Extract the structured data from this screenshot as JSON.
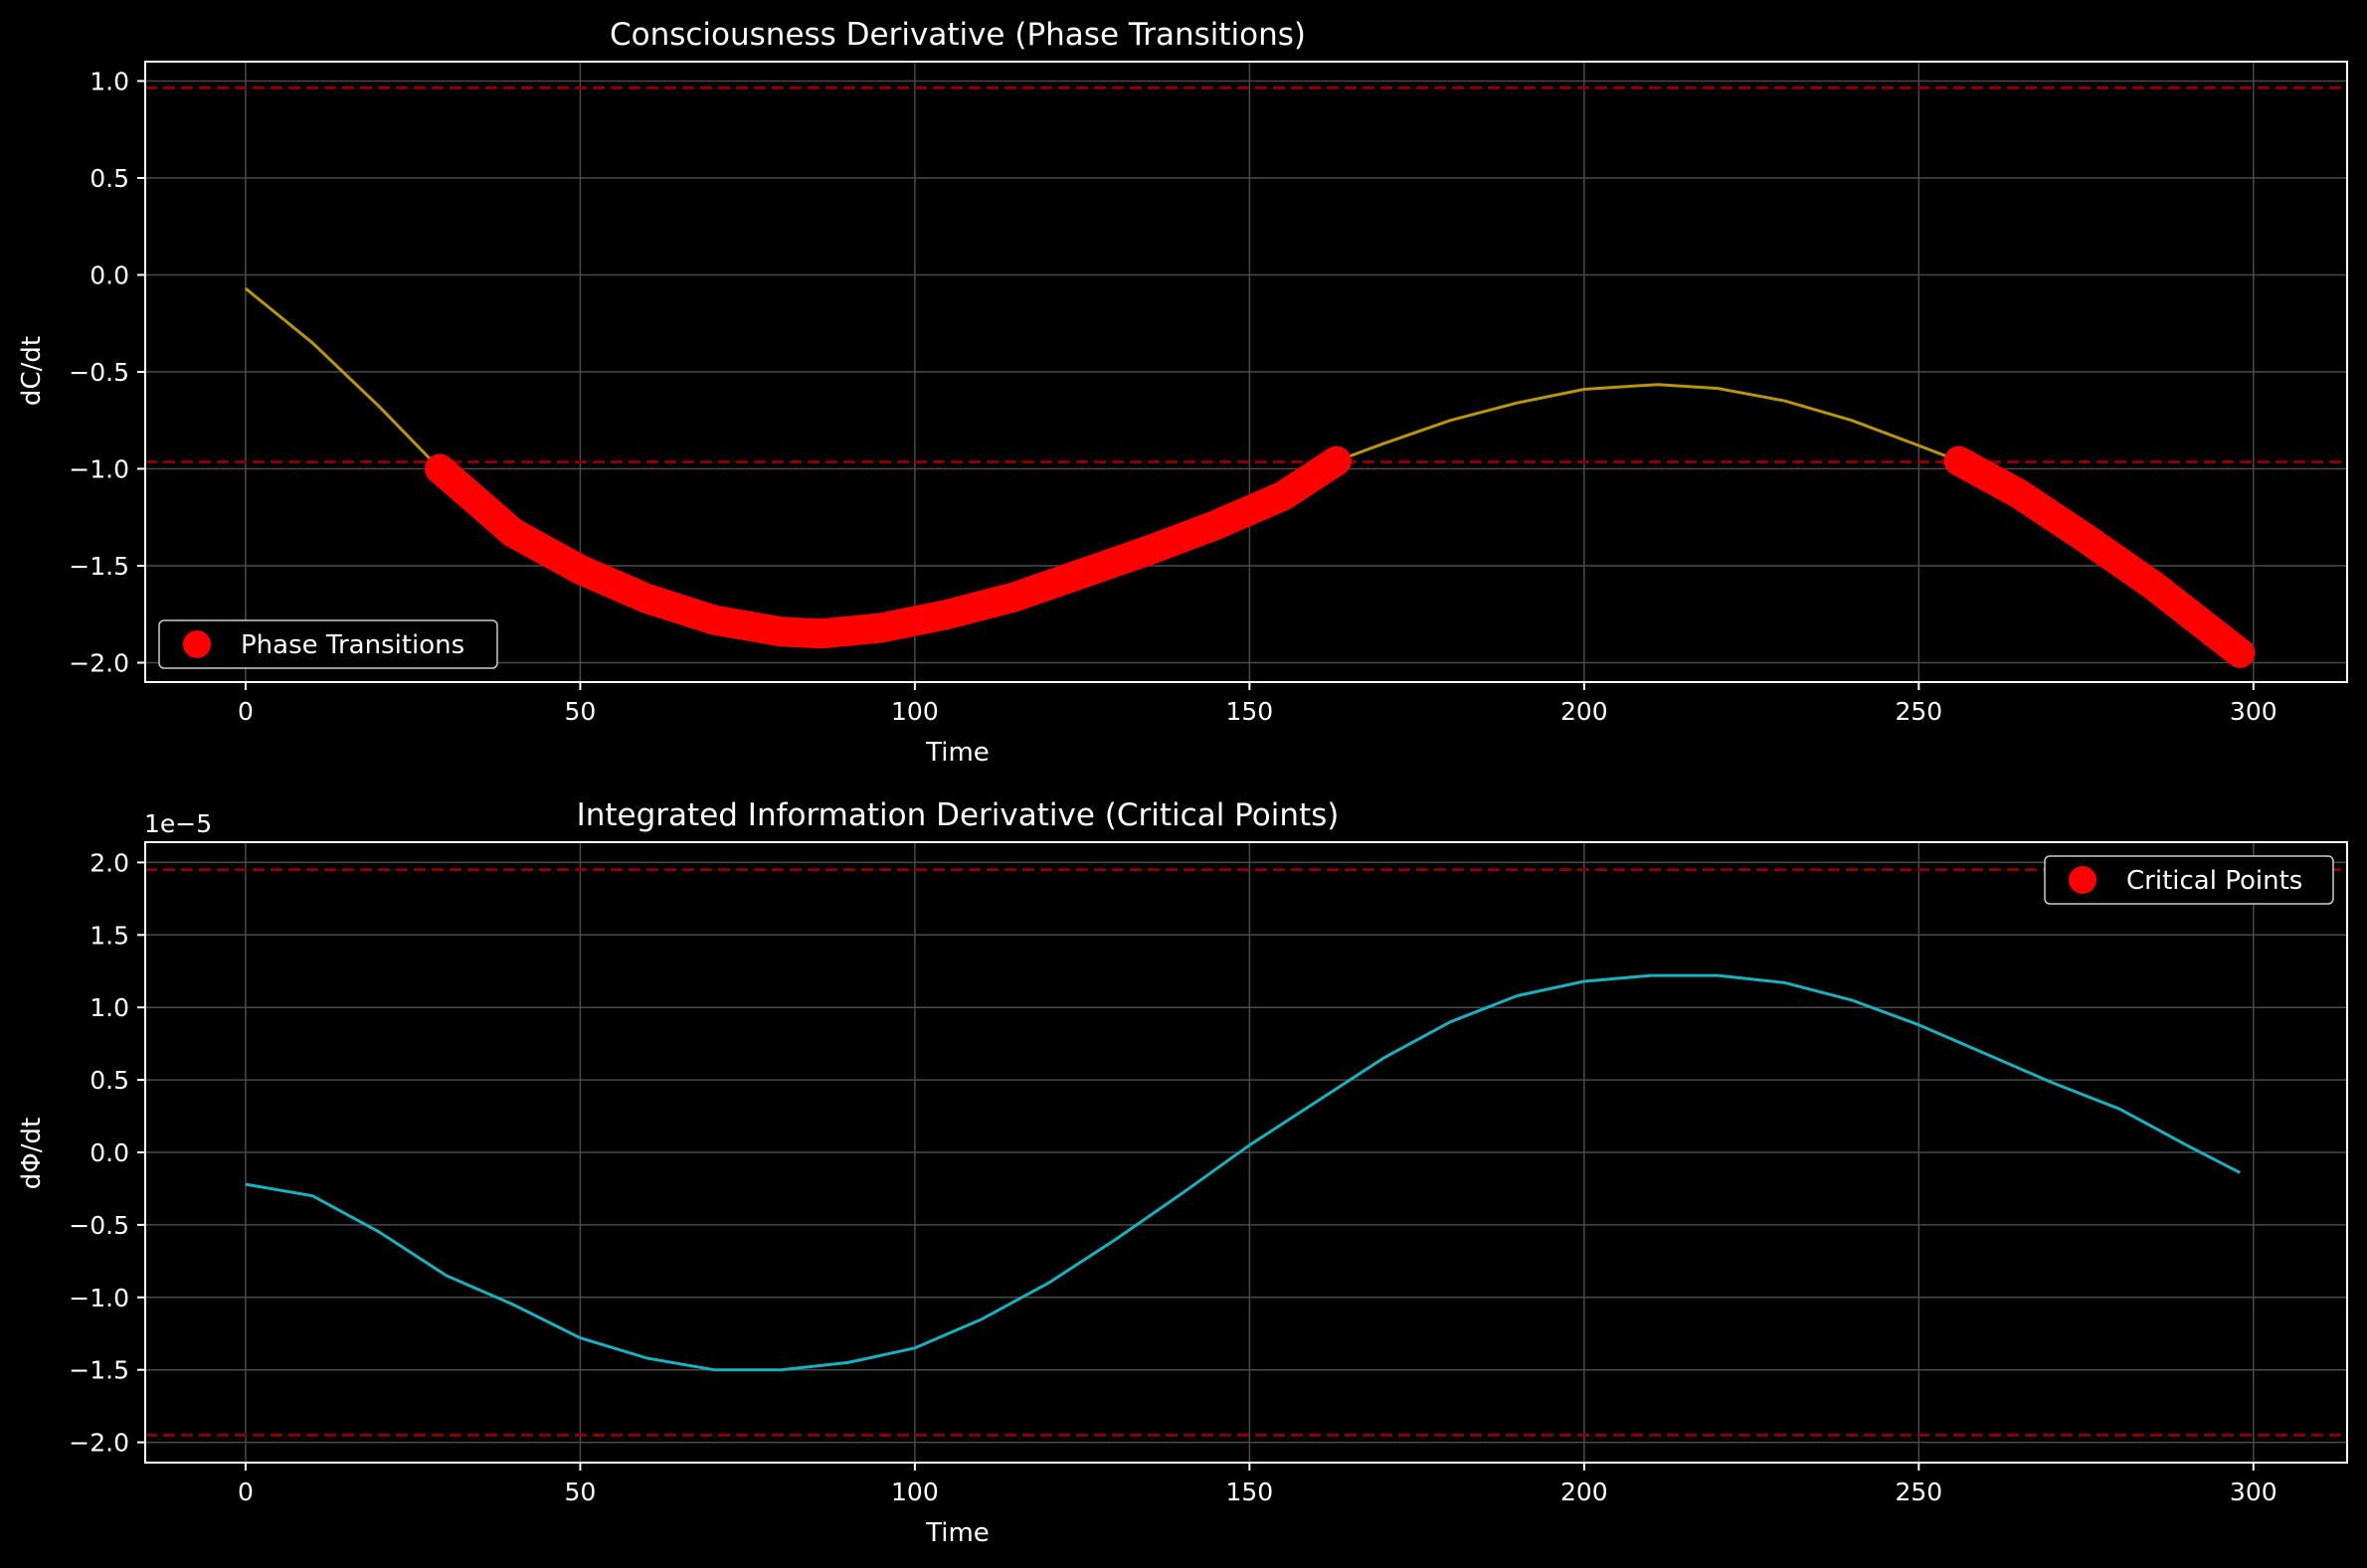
{
  "chart_data": [
    {
      "type": "line",
      "title": "Consciousness Derivative (Phase Transitions)",
      "xlabel": "Time",
      "ylabel": "dC/dt",
      "xlim": [
        -15,
        314
      ],
      "ylim": [
        -2.1,
        1.1
      ],
      "xticks": [
        0,
        50,
        100,
        150,
        200,
        250,
        300
      ],
      "xtick_labels": [
        "0",
        "50",
        "100",
        "150",
        "200",
        "250",
        "300"
      ],
      "yticks": [
        1.0,
        0.5,
        0.0,
        -0.5,
        -1.0,
        -1.5,
        -2.0
      ],
      "ytick_labels": [
        "1.0",
        "0.5",
        "0.0",
        "−0.5",
        "−1.0",
        "−1.5",
        "−2.0"
      ],
      "grid": true,
      "thresholds": [
        0.965,
        -0.965
      ],
      "threshold_color": "#8b0000",
      "legend": {
        "label": "Phase Transitions",
        "placement": "lower-left"
      },
      "series": [
        {
          "color": "#b8960b",
          "x": [
            0,
            10,
            20,
            29,
            40,
            50,
            60,
            70,
            80,
            86,
            95,
            105,
            115,
            125,
            135,
            145,
            155,
            163,
            170,
            180,
            190,
            200,
            211,
            220,
            230,
            240,
            250,
            256,
            265,
            275,
            285,
            298
          ],
          "y": [
            -0.07,
            -0.35,
            -0.68,
            -1.0,
            -1.33,
            -1.52,
            -1.67,
            -1.78,
            -1.84,
            -1.85,
            -1.82,
            -1.75,
            -1.66,
            -1.54,
            -1.42,
            -1.29,
            -1.14,
            -0.96,
            -0.87,
            -0.75,
            -0.66,
            -0.59,
            -0.565,
            -0.585,
            -0.65,
            -0.75,
            -0.88,
            -0.96,
            -1.13,
            -1.36,
            -1.6,
            -1.95
          ]
        }
      ],
      "markers": {
        "name": "Phase Transitions",
        "color": "#ff0000",
        "segments": [
          {
            "x": [
              29,
              40,
              50,
              60,
              70,
              80,
              86,
              95,
              105,
              115,
              125,
              135,
              145,
              155,
              163
            ],
            "y": [
              -1.0,
              -1.33,
              -1.52,
              -1.67,
              -1.78,
              -1.84,
              -1.85,
              -1.82,
              -1.75,
              -1.66,
              -1.54,
              -1.42,
              -1.29,
              -1.14,
              -0.96
            ]
          },
          {
            "x": [
              256,
              265,
              275,
              285,
              298
            ],
            "y": [
              -0.96,
              -1.13,
              -1.36,
              -1.6,
              -1.95
            ]
          }
        ]
      }
    },
    {
      "type": "line",
      "title": "Integrated Information Derivative (Critical Points)",
      "xlabel": "Time",
      "ylabel": "dΦ/dt",
      "offset_text": "1e−5",
      "xlim": [
        -15,
        314
      ],
      "ylim": [
        -2.14,
        2.14
      ],
      "xticks": [
        0,
        50,
        100,
        150,
        200,
        250,
        300
      ],
      "xtick_labels": [
        "0",
        "50",
        "100",
        "150",
        "200",
        "250",
        "300"
      ],
      "yticks": [
        2.0,
        1.5,
        1.0,
        0.5,
        0.0,
        -0.5,
        -1.0,
        -1.5,
        -2.0
      ],
      "ytick_labels": [
        "2.0",
        "1.5",
        "1.0",
        "0.5",
        "0.0",
        "−0.5",
        "−1.0",
        "−1.5",
        "−2.0"
      ],
      "grid": true,
      "thresholds": [
        1.95,
        -1.95
      ],
      "threshold_color": "#8b0000",
      "legend": {
        "label": "Critical Points",
        "placement": "upper-right",
        "color": "#ff0000"
      },
      "series": [
        {
          "color": "#17b2be",
          "x": [
            0,
            10,
            20,
            30,
            40,
            50,
            60,
            70,
            80,
            90,
            100,
            110,
            120,
            130,
            140,
            150,
            160,
            170,
            180,
            190,
            200,
            210,
            220,
            230,
            240,
            250,
            260,
            270,
            280,
            290,
            298
          ],
          "y": [
            -0.22,
            -0.3,
            -0.55,
            -0.85,
            -1.05,
            -1.28,
            -1.42,
            -1.5,
            -1.5,
            -1.45,
            -1.35,
            -1.15,
            -0.9,
            -0.6,
            -0.28,
            0.05,
            0.35,
            0.65,
            0.9,
            1.08,
            1.18,
            1.22,
            1.22,
            1.17,
            1.05,
            0.88,
            0.68,
            0.48,
            0.3,
            0.05,
            -0.14
          ]
        }
      ]
    }
  ]
}
